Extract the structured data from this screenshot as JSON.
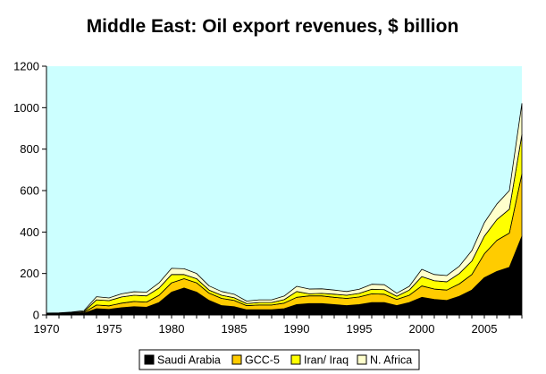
{
  "chart_data": {
    "type": "area",
    "stacked": true,
    "title": "Middle East: Oil export revenues, $ billion",
    "xlabel": "",
    "ylabel": "",
    "x": [
      1970,
      1971,
      1972,
      1973,
      1974,
      1975,
      1976,
      1977,
      1978,
      1979,
      1980,
      1981,
      1982,
      1983,
      1984,
      1985,
      1986,
      1987,
      1988,
      1989,
      1990,
      1991,
      1992,
      1993,
      1994,
      1995,
      1996,
      1997,
      1998,
      1999,
      2000,
      2001,
      2002,
      2003,
      2004,
      2005,
      2006,
      2007,
      2008
    ],
    "xlim": [
      1970,
      2008
    ],
    "x_ticks": [
      1970,
      1975,
      1980,
      1985,
      1990,
      1995,
      2000,
      2005
    ],
    "ylim": [
      0,
      1200
    ],
    "y_ticks": [
      0,
      200,
      400,
      600,
      800,
      1000,
      1200
    ],
    "grid": false,
    "plot_background": "#ccffff",
    "legend_position": "bottom",
    "series": [
      {
        "name": "Saudi Arabia",
        "color": "#000000",
        "values": [
          3,
          4,
          5,
          8,
          30,
          27,
          35,
          40,
          37,
          60,
          110,
          130,
          110,
          70,
          45,
          40,
          25,
          25,
          25,
          30,
          50,
          55,
          55,
          50,
          45,
          50,
          60,
          60,
          45,
          60,
          85,
          75,
          70,
          90,
          120,
          180,
          210,
          230,
          380
        ]
      },
      {
        "name": "GCC-5",
        "color": "#ffcc00",
        "values": [
          2,
          2,
          3,
          4,
          18,
          17,
          22,
          25,
          25,
          35,
          45,
          45,
          45,
          35,
          35,
          30,
          20,
          23,
          23,
          27,
          35,
          37,
          37,
          35,
          35,
          37,
          42,
          40,
          30,
          35,
          55,
          50,
          50,
          60,
          75,
          115,
          150,
          165,
          300
        ]
      },
      {
        "name": "Iran/ Iraq",
        "color": "#ffff00",
        "values": [
          2,
          2,
          3,
          4,
          25,
          25,
          30,
          30,
          30,
          35,
          40,
          20,
          20,
          15,
          15,
          13,
          10,
          12,
          12,
          17,
          28,
          10,
          12,
          15,
          15,
          17,
          22,
          22,
          15,
          25,
          45,
          40,
          40,
          50,
          65,
          85,
          100,
          115,
          190
        ]
      },
      {
        "name": "N. Africa",
        "color": "#ffffcc",
        "values": [
          2,
          2,
          3,
          5,
          15,
          13,
          15,
          17,
          18,
          25,
          30,
          28,
          25,
          20,
          18,
          17,
          12,
          13,
          13,
          17,
          25,
          23,
          22,
          20,
          18,
          20,
          24,
          24,
          15,
          18,
          35,
          30,
          30,
          35,
          50,
          65,
          75,
          90,
          150
        ]
      }
    ]
  }
}
